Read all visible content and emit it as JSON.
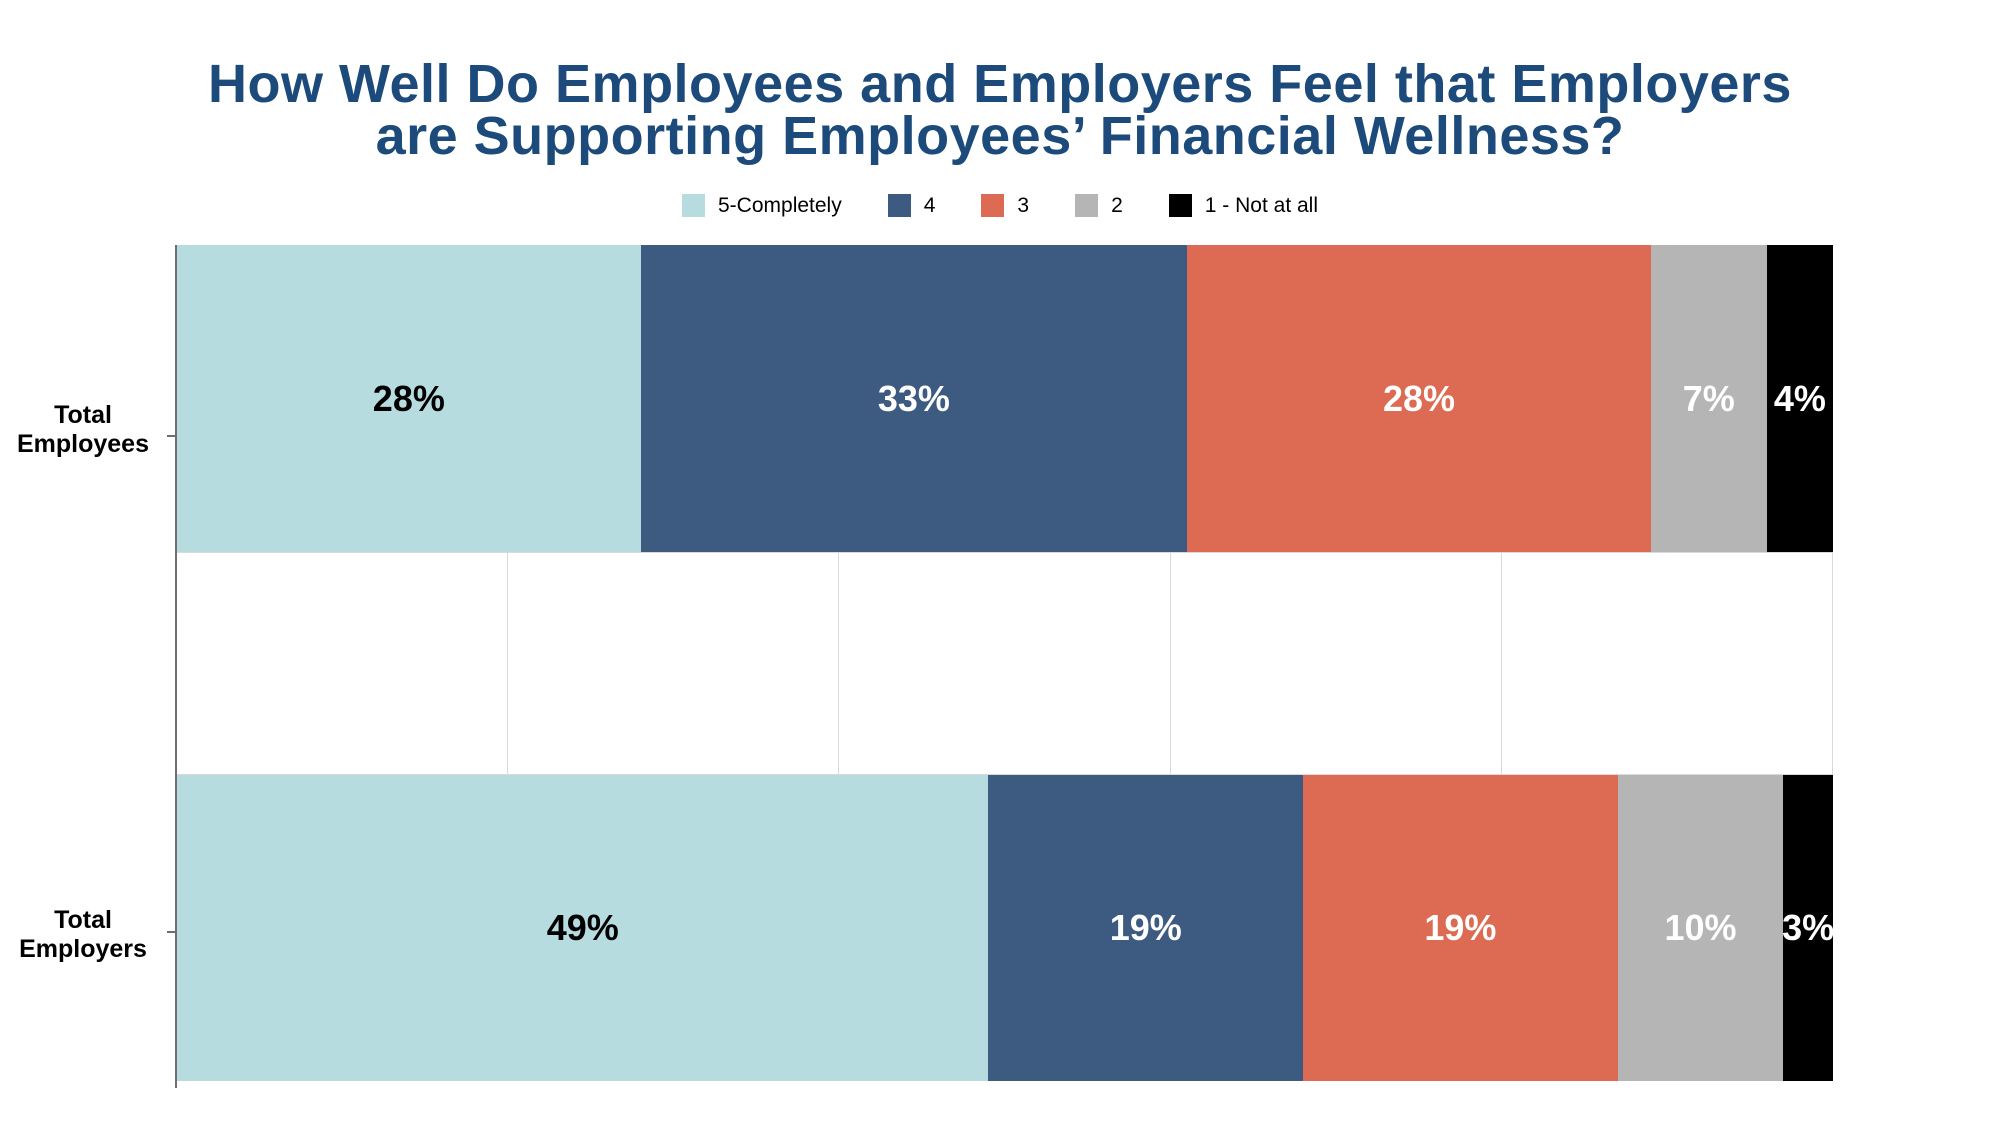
{
  "header": {
    "title_line1": "How Well Do Employees and Employers Feel that Employers",
    "title_line2": "are Supporting Employees’ Financial Wellness?"
  },
  "chart_data": {
    "type": "bar",
    "variant": "horizontal-stacked",
    "title": "How Well Do Employees and Employers Feel that Employers are Supporting Employees’ Financial Wellness?",
    "categories": [
      "Total Employees",
      "Total Employers"
    ],
    "series": [
      {
        "name": "5-Completely",
        "color": "#B7DCE0",
        "label_color": "#000000",
        "values": [
          28,
          49
        ]
      },
      {
        "name": "4",
        "color": "#3D5A80",
        "label_color": "#FFFFFF",
        "values": [
          33,
          19
        ]
      },
      {
        "name": "3",
        "color": "#DD6A52",
        "label_color": "#FFFFFF",
        "values": [
          28,
          19
        ]
      },
      {
        "name": "2",
        "color": "#B5B5B5",
        "label_color": "#FFFFFF",
        "values": [
          7,
          10
        ]
      },
      {
        "name": "1 - Not at all",
        "color": "#000000",
        "label_color": "#FFFFFF",
        "values": [
          4,
          3
        ]
      }
    ],
    "value_suffix": "%",
    "xlim": [
      0,
      100
    ],
    "gridlines_percent": [
      20,
      40,
      60,
      80,
      100
    ],
    "legend_position": "top",
    "grid": "vertical-visible-between-bars",
    "colors": {
      "title_text": "#1C4B7B",
      "gridline": "#D9D9D9",
      "axis_line": "#6E6E6E",
      "background": "#FFFFFF"
    }
  }
}
